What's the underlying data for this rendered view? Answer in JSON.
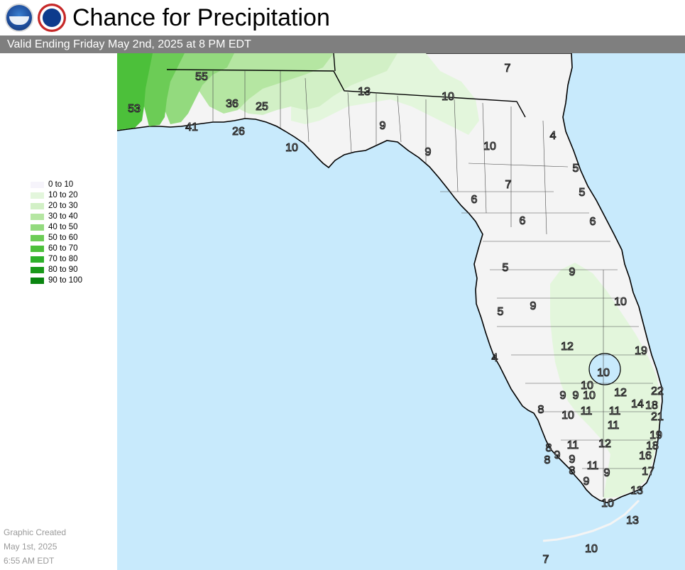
{
  "header": {
    "logos": [
      "noaa-logo",
      "nws-logo"
    ],
    "title": "Chance for Precipitation",
    "valid_text": "Valid Ending Friday May 2nd, 2025 at 8 PM EDT"
  },
  "legend": {
    "items": [
      {
        "label": "0 to 10",
        "color": "#f6f4fb"
      },
      {
        "label": "10 to 20",
        "color": "#e3f6dc"
      },
      {
        "label": "20 to 30",
        "color": "#d2f0c6"
      },
      {
        "label": "30 to 40",
        "color": "#b5e6a2"
      },
      {
        "label": "40 to 50",
        "color": "#93da7e"
      },
      {
        "label": "50 to 60",
        "color": "#6ccc56"
      },
      {
        "label": "60 to 70",
        "color": "#4cc03a"
      },
      {
        "label": "70 to 80",
        "color": "#2eb12a"
      },
      {
        "label": "80 to 90",
        "color": "#1a9a1a"
      },
      {
        "label": "90 to 100",
        "color": "#0a8510"
      }
    ]
  },
  "footer": {
    "created_label": "Graphic Created",
    "created_date": "May 1st, 2025",
    "created_time": "6:55 AM EDT"
  },
  "map": {
    "colors": {
      "water": "#c8eafc",
      "land": "#f4f4f4",
      "border": "#000000"
    },
    "values": [
      "7",
      "55",
      "13",
      "10",
      "53",
      "36",
      "25",
      "41",
      "26",
      "9",
      "10",
      "9",
      "4",
      "10",
      "5",
      "7",
      "5",
      "6",
      "6",
      "6",
      "5",
      "9",
      "10",
      "5",
      "9",
      "4",
      "12",
      "19",
      "10",
      "10",
      "12",
      "22",
      "9",
      "9",
      "10",
      "8",
      "10",
      "11",
      "11",
      "14",
      "18",
      "21",
      "11",
      "19",
      "8",
      "11",
      "12",
      "18",
      "16",
      "8",
      "9",
      "9",
      "11",
      "8",
      "9",
      "17",
      "9",
      "13",
      "10",
      "13",
      "10",
      "7"
    ]
  }
}
